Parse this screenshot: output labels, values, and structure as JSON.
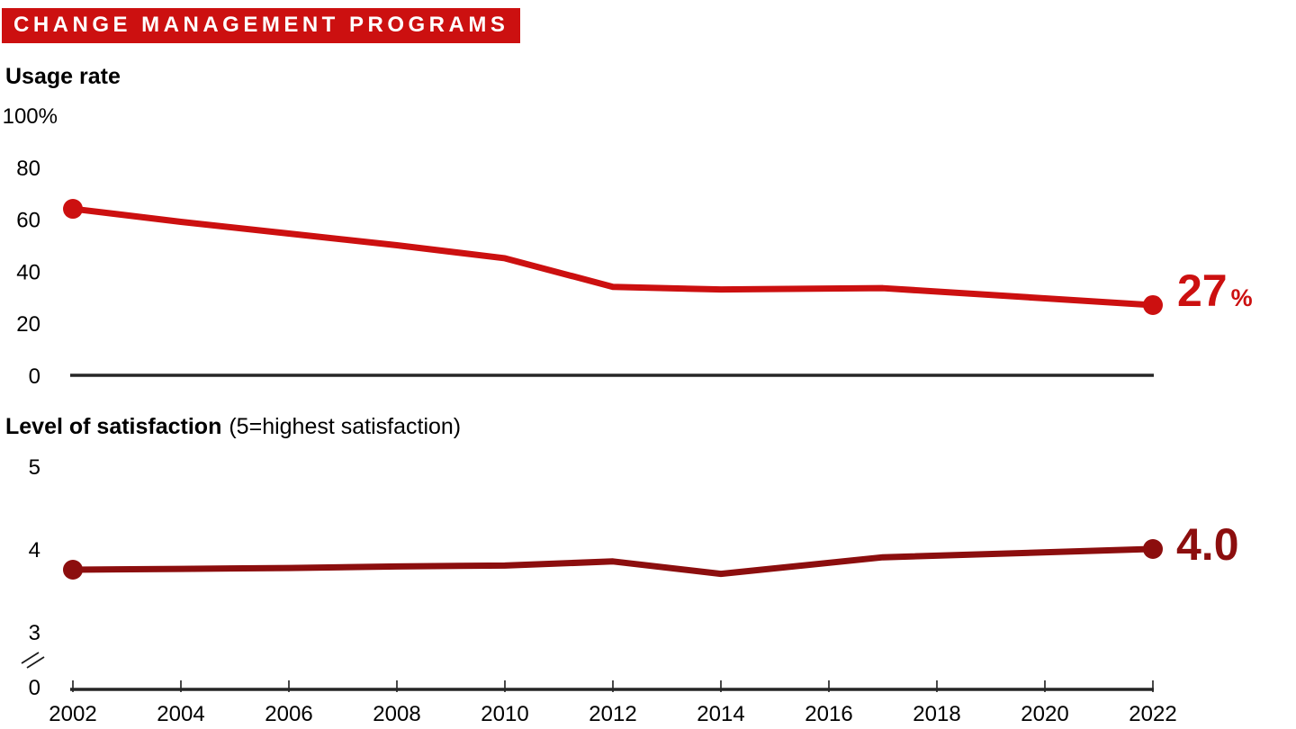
{
  "header": {
    "title": "CHANGE MANAGEMENT PROGRAMS"
  },
  "colors": {
    "banner_red": "#cc1010",
    "usage_line_red": "#cc1010",
    "satisfaction_line_dark_red": "#8c0e0e",
    "axis_dark": "#262626",
    "tick_gray": "#4a4a4a",
    "text_black": "#000000",
    "banner_text_white": "#ffffff"
  },
  "usage_chart": {
    "title": "Usage rate",
    "end_value": "27",
    "end_unit": "%"
  },
  "satisfaction_chart": {
    "title": "Level of satisfaction",
    "note": "(5=highest satisfaction)",
    "end_value": "4.0"
  },
  "chart_data": [
    {
      "type": "line",
      "title": "Usage rate",
      "unit": "percent",
      "x": [
        2002,
        2004,
        2006,
        2008,
        2010,
        2012,
        2014,
        2017,
        2022
      ],
      "series": [
        {
          "name": "Usage rate",
          "values": [
            64,
            59,
            54.5,
            50,
            45,
            34,
            33,
            33.5,
            27
          ]
        }
      ],
      "ylim": [
        0,
        100
      ],
      "yticks": [
        {
          "label": "100%",
          "value": 100
        },
        {
          "label": "80",
          "value": 80
        },
        {
          "label": "60",
          "value": 60
        },
        {
          "label": "40",
          "value": 40
        },
        {
          "label": "20",
          "value": 20
        },
        {
          "label": "0",
          "value": 0
        }
      ],
      "end_annotation": "27%",
      "grid": false,
      "legend": "none",
      "line_color": "#cc1010"
    },
    {
      "type": "line",
      "title": "Level of satisfaction",
      "subtitle": "(5=highest satisfaction)",
      "x": [
        2002,
        2004,
        2006,
        2008,
        2010,
        2012,
        2014,
        2017,
        2022
      ],
      "series": [
        {
          "name": "Level of satisfaction",
          "values": [
            3.75,
            3.76,
            3.77,
            3.79,
            3.8,
            3.85,
            3.7,
            3.9,
            4.0
          ]
        }
      ],
      "ylim": [
        3,
        5
      ],
      "axis_break_to_zero": true,
      "yticks": [
        {
          "label": "5",
          "value": 5
        },
        {
          "label": "4",
          "value": 4
        },
        {
          "label": "3",
          "value": 3
        },
        {
          "label": "0",
          "value": 0
        }
      ],
      "xticks": [
        2002,
        2004,
        2006,
        2008,
        2010,
        2012,
        2014,
        2016,
        2018,
        2020,
        2022
      ],
      "end_annotation": "4.0",
      "grid": false,
      "legend": "none",
      "line_color": "#8c0e0e"
    }
  ]
}
